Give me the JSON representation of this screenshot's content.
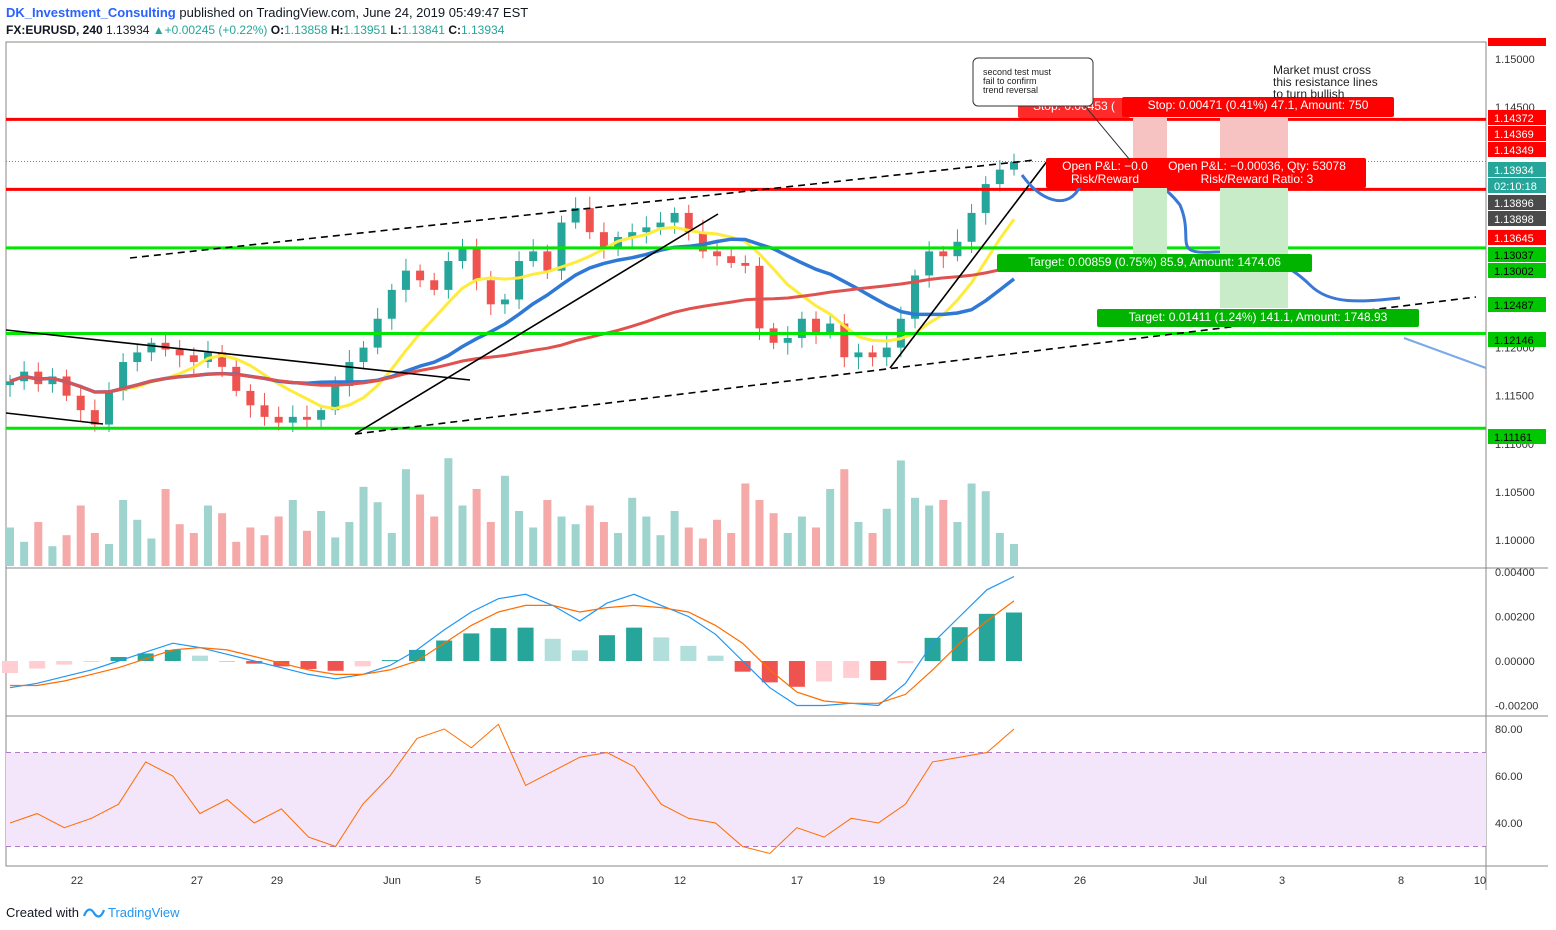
{
  "header": {
    "author": "DK_Investment_Consulting",
    "published": "published on TradingView.com, June 24, 2019 05:49:47 EST",
    "symbol": "FX:EURUSD, 240",
    "last": "1.13934",
    "change_arrow": "▲",
    "change": "+0.00245 (+0.22%)",
    "o_label": "O:",
    "o": "1.13858",
    "h_label": "H:",
    "h": "1.13951",
    "l_label": "L:",
    "l": "1.13841",
    "c_label": "C:",
    "c": "1.13934"
  },
  "footer": {
    "created_with": "Created with",
    "brand": "TradingView",
    "logo_icon": "tradingview-logo-icon"
  },
  "colors": {
    "up": "#26a69a",
    "down": "#ef5350",
    "vol_up": "#9ed4cd",
    "vol_down": "#f5a9a8",
    "ema_fast": "#ffeb3b",
    "ema_mid": "#2f78d6",
    "ema_slow": "#e0524f",
    "resistance": "#ff0000",
    "support": "#00e600",
    "macd": "#2196f3",
    "signal": "#ff6d00",
    "rsi": "#ff6d00",
    "rsi_band": "#f3e5fa"
  },
  "annotations": {
    "callout": "second test must fail to confirm trend reversal",
    "note_lines": [
      "Market must cross",
      "this resistance lines",
      "to turn bullish"
    ],
    "stop_left": "Stop: 0.00453 (",
    "stop_right": "Stop: 0.00471 (0.41%) 47.1, Amount: 750",
    "pnl_left_1": "Open P&L: −0.0",
    "pnl_left_2": "Risk/Reward",
    "pnl_right_1": "Open P&L: −0.00036, Qty: 53078",
    "pnl_right_2": "Risk/Reward Ratio: 3",
    "target1": "Target: 0.00859 (0.75%) 85.9, Amount: 1474.06",
    "target2": "Target: 0.01411 (1.24%) 141.1, Amount: 1748.93"
  },
  "price_axis": {
    "ticks": [
      "1.15000",
      "1.14500",
      "1.12000",
      "1.11500",
      "1.11000",
      "1.10500",
      "1.10000"
    ],
    "badges": [
      {
        "label": "1.14372",
        "bg": "#ff0000",
        "fg": "#ffffff"
      },
      {
        "label": "1.14369",
        "bg": "#ff0000",
        "fg": "#ffffff"
      },
      {
        "label": "1.14349",
        "bg": "#ff0000",
        "fg": "#ffffff"
      },
      {
        "label": "1.13934",
        "bg": "#26a69a",
        "fg": "#ffffff"
      },
      {
        "label": "02:10:18",
        "bg": "#26a69a",
        "fg": "#ffffff"
      },
      {
        "label": "1.13896",
        "bg": "#4a4a4a",
        "fg": "#ffffff"
      },
      {
        "label": "1.13898",
        "bg": "#4a4a4a",
        "fg": "#ffffff"
      },
      {
        "label": "1.13645",
        "bg": "#ff0000",
        "fg": "#ffffff"
      },
      {
        "label": "1.13037",
        "bg": "#00c800",
        "fg": "#000000"
      },
      {
        "label": "1.13002",
        "bg": "#00c800",
        "fg": "#000000"
      },
      {
        "label": "1.12487",
        "bg": "#00c800",
        "fg": "#000000"
      },
      {
        "label": "1.12146",
        "bg": "#00c800",
        "fg": "#000000"
      },
      {
        "label": "1.11161",
        "bg": "#00c800",
        "fg": "#000000"
      }
    ]
  },
  "macd_axis": {
    "ticks": [
      "0.00400",
      "0.00200",
      "0.00000",
      "-0.00200"
    ]
  },
  "rsi_axis": {
    "ticks": [
      "80.00",
      "60.00",
      "40.00"
    ]
  },
  "time_axis": {
    "labels": [
      "22",
      "27",
      "29",
      "Jun",
      "5",
      "10",
      "12",
      "17",
      "19",
      "24",
      "26",
      "Jul",
      "3",
      "8",
      "10"
    ]
  },
  "chart_data": {
    "type": "candlestick",
    "symbol": "EURUSD",
    "interval": "240",
    "ylim": [
      1.0985,
      1.1525
    ],
    "horizontal_levels": {
      "resistance": [
        1.14372,
        1.13645
      ],
      "support": [
        1.13037,
        1.12146,
        1.11161
      ]
    },
    "close_path": [
      1.1165,
      1.1175,
      1.1162,
      1.117,
      1.115,
      1.1135,
      1.112,
      1.1155,
      1.1185,
      1.1195,
      1.1205,
      1.1198,
      1.1192,
      1.1185,
      1.1195,
      1.118,
      1.1155,
      1.114,
      1.1128,
      1.1122,
      1.1128,
      1.1125,
      1.1135,
      1.116,
      1.1185,
      1.12,
      1.123,
      1.126,
      1.128,
      1.127,
      1.126,
      1.129,
      1.1305,
      1.127,
      1.1245,
      1.125,
      1.129,
      1.13,
      1.128,
      1.133,
      1.1345,
      1.132,
      1.1305,
      1.1315,
      1.132,
      1.1325,
      1.133,
      1.134,
      1.132,
      1.13,
      1.1295,
      1.1288,
      1.1285,
      1.122,
      1.1205,
      1.121,
      1.123,
      1.1215,
      1.1225,
      1.119,
      1.1195,
      1.119,
      1.12,
      1.123,
      1.1275,
      1.13,
      1.1295,
      1.131,
      1.134,
      1.137,
      1.1385,
      1.1393
    ],
    "volume_path": [
      35,
      22,
      40,
      18,
      28,
      55,
      30,
      20,
      60,
      42,
      25,
      70,
      38,
      30,
      55,
      48,
      22,
      35,
      28,
      45,
      60,
      32,
      50,
      26,
      40,
      72,
      58,
      30,
      88,
      65,
      45,
      98,
      55,
      70,
      40,
      82,
      50,
      35,
      60,
      45,
      38,
      55,
      40,
      30,
      62,
      45,
      28,
      50,
      35,
      25,
      42,
      30,
      75,
      60,
      48,
      30,
      45,
      35,
      70,
      88,
      40,
      30,
      52,
      96,
      62,
      55,
      60,
      40,
      75,
      68,
      30,
      20
    ],
    "macd_path": [
      -0.0012,
      -0.001,
      -0.0007,
      -0.0004,
      0.0,
      0.0004,
      0.0008,
      0.0006,
      0.0003,
      0.0,
      -0.0003,
      -0.0006,
      -0.0008,
      -0.0006,
      -0.0002,
      0.0005,
      0.0014,
      0.0022,
      0.0028,
      0.003,
      0.0025,
      0.0018,
      0.0026,
      0.003,
      0.0025,
      0.002,
      0.0012,
      0.0,
      -0.0012,
      -0.002,
      -0.002,
      -0.0019,
      -0.002,
      -0.001,
      0.0008,
      0.002,
      0.0032,
      0.0038
    ],
    "signal_path": [
      -0.0011,
      -0.0011,
      -0.0009,
      -0.0006,
      -0.0003,
      0.0001,
      0.0005,
      0.0006,
      0.0005,
      0.0002,
      -0.0001,
      -0.0004,
      -0.0006,
      -0.0006,
      -0.0004,
      0.0,
      0.0008,
      0.0016,
      0.0022,
      0.0025,
      0.0025,
      0.0022,
      0.0024,
      0.0025,
      0.0024,
      0.0022,
      0.0016,
      0.0008,
      -0.0004,
      -0.0014,
      -0.0018,
      -0.0019,
      -0.0019,
      -0.0015,
      -0.0004,
      0.0008,
      0.0018,
      0.0027
    ],
    "rsi_path": [
      40,
      44,
      38,
      42,
      48,
      66,
      60,
      44,
      50,
      40,
      46,
      34,
      30,
      48,
      60,
      76,
      80,
      72,
      82,
      56,
      62,
      68,
      70,
      64,
      48,
      42,
      40,
      30,
      27,
      38,
      34,
      42,
      40,
      48,
      66,
      68,
      70,
      80
    ]
  }
}
